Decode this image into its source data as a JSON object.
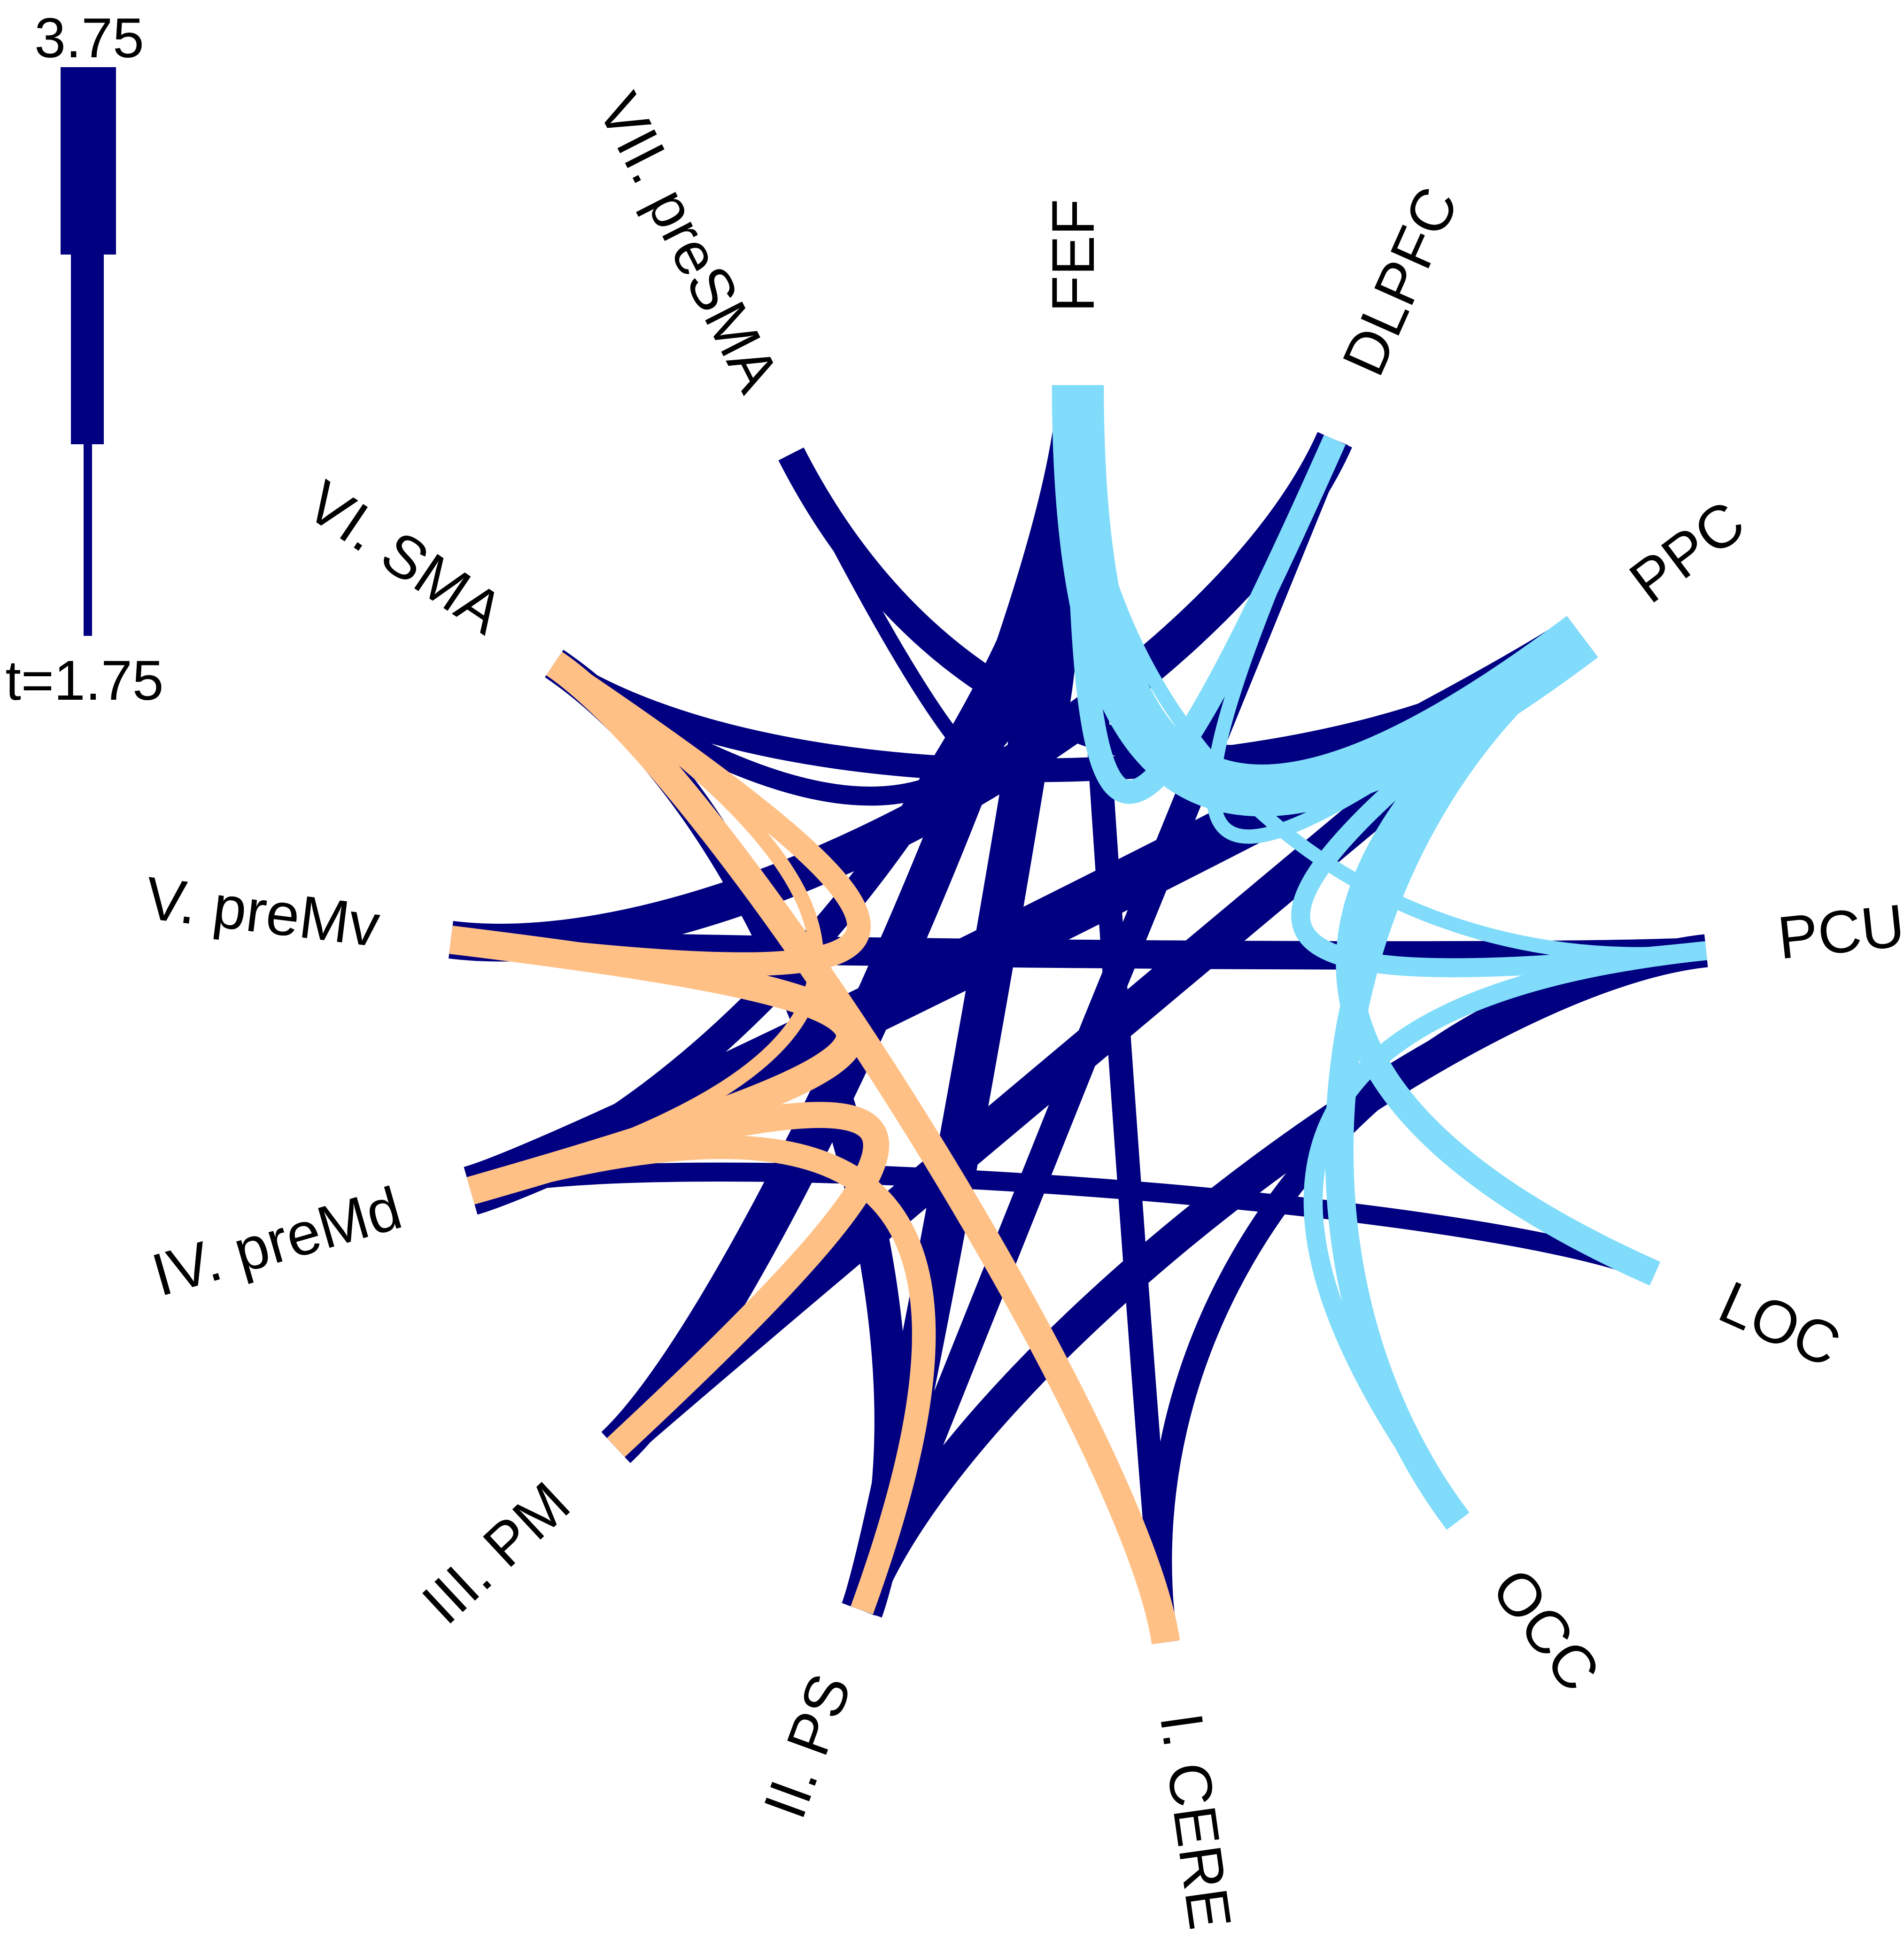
{
  "colors": {
    "between_groups": "#000080",
    "motor_group": "#ffc085",
    "posterior_group": "#80dcfa",
    "background": "#ffffff"
  },
  "legend": {
    "max_label": "3.75",
    "min_label": "t=1.75",
    "max_value": 3.75,
    "min_value": 1.75
  },
  "nodes": [
    {
      "id": "FEF",
      "label": "FEF",
      "angle_deg": 90
    },
    {
      "id": "DLPFC",
      "label": "DLPFC",
      "angle_deg": 66
    },
    {
      "id": "PPC",
      "label": "PPC",
      "angle_deg": 37
    },
    {
      "id": "PCU",
      "label": "PCU",
      "angle_deg": 6
    },
    {
      "id": "LOC",
      "label": "LOC",
      "angle_deg": -24
    },
    {
      "id": "OCC",
      "label": "OCC",
      "angle_deg": -53
    },
    {
      "id": "CERE",
      "label": "I. CERE",
      "angle_deg": -82
    },
    {
      "id": "PS",
      "label": "II. PS",
      "angle_deg": -110
    },
    {
      "id": "PM",
      "label": "III. PM",
      "angle_deg": -137
    },
    {
      "id": "preMd",
      "label": "IV. preMd",
      "angle_deg": -164
    },
    {
      "id": "preMv",
      "label": "V. preMv",
      "angle_deg": 173
    },
    {
      "id": "SMA",
      "label": "VI. SMA",
      "angle_deg": 146
    },
    {
      "id": "preSMA",
      "label": "VII. preSMA",
      "angle_deg": 117
    }
  ],
  "connections": [
    {
      "from": "FEF",
      "to": "PPC",
      "group": "posterior",
      "t": 3.6
    },
    {
      "from": "FEF",
      "to": "DLPFC",
      "group": "posterior",
      "t": 2.4
    },
    {
      "from": "FEF",
      "to": "PCU",
      "group": "posterior",
      "t": 2.0
    },
    {
      "from": "DLPFC",
      "to": "PPC",
      "group": "posterior",
      "t": 2.0
    },
    {
      "from": "PPC",
      "to": "PCU",
      "group": "posterior",
      "t": 2.2
    },
    {
      "from": "PPC",
      "to": "LOC",
      "group": "posterior",
      "t": 2.5
    },
    {
      "from": "PPC",
      "to": "OCC",
      "group": "posterior",
      "t": 2.6
    },
    {
      "from": "PCU",
      "to": "OCC",
      "group": "posterior",
      "t": 2.2
    },
    {
      "from": "SMA",
      "to": "preMv",
      "group": "motor",
      "t": 2.4
    },
    {
      "from": "SMA",
      "to": "preMd",
      "group": "motor",
      "t": 2.0
    },
    {
      "from": "SMA",
      "to": "CERE",
      "group": "motor",
      "t": 2.6
    },
    {
      "from": "preMv",
      "to": "preMd",
      "group": "motor",
      "t": 2.6
    },
    {
      "from": "preMd",
      "to": "PM",
      "group": "motor",
      "t": 2.5
    },
    {
      "from": "preMd",
      "to": "PS",
      "group": "motor",
      "t": 2.4
    },
    {
      "from": "preSMA",
      "to": "FEF",
      "group": "between",
      "t": 2.0
    },
    {
      "from": "preSMA",
      "to": "PPC",
      "group": "between",
      "t": 2.6
    },
    {
      "from": "SMA",
      "to": "FEF",
      "group": "between",
      "t": 2.2
    },
    {
      "from": "SMA",
      "to": "PPC",
      "group": "between",
      "t": 2.4
    },
    {
      "from": "SMA",
      "to": "PS",
      "group": "between",
      "t": 2.8
    },
    {
      "from": "preMv",
      "to": "DLPFC",
      "group": "between",
      "t": 3.0
    },
    {
      "from": "preMv",
      "to": "PCU",
      "group": "between",
      "t": 2.6
    },
    {
      "from": "preMd",
      "to": "FEF",
      "group": "between",
      "t": 2.6
    },
    {
      "from": "preMd",
      "to": "PPC",
      "group": "between",
      "t": 3.5
    },
    {
      "from": "preMd",
      "to": "LOC",
      "group": "between",
      "t": 2.2
    },
    {
      "from": "PM",
      "to": "FEF",
      "group": "between",
      "t": 3.2
    },
    {
      "from": "PM",
      "to": "PPC",
      "group": "between",
      "t": 3.0
    },
    {
      "from": "PS",
      "to": "FEF",
      "group": "between",
      "t": 3.2
    },
    {
      "from": "PS",
      "to": "DLPFC",
      "group": "between",
      "t": 2.6
    },
    {
      "from": "PS",
      "to": "PCU",
      "group": "between",
      "t": 2.8
    },
    {
      "from": "CERE",
      "to": "FEF",
      "group": "between",
      "t": 2.4
    },
    {
      "from": "CERE",
      "to": "PCU",
      "group": "between",
      "t": 2.4
    }
  ]
}
